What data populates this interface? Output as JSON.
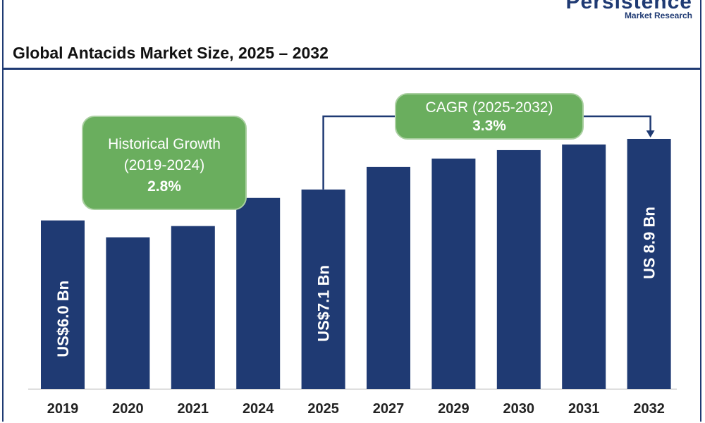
{
  "header": {
    "logo_word": "Persistence",
    "logo_sub": "Market Research",
    "title": "Global Antacids Market Size, 2025 – 2032"
  },
  "callouts": {
    "historical": {
      "line1": "Historical Growth",
      "line2": "(2019-2024)",
      "value": "2.8%"
    },
    "cagr": {
      "line1": "CAGR (2025-2032)",
      "value": "3.3%"
    }
  },
  "colors": {
    "bar": "#1f3a73",
    "accent_green": "#6aae5e",
    "rule": "#1f3a73"
  },
  "chart_data": {
    "type": "bar",
    "title": "Global Antacids Market Size, 2025 – 2032",
    "xlabel": "",
    "ylabel": "",
    "categories": [
      "2019",
      "2020",
      "2021",
      "2024",
      "2025",
      "2027",
      "2029",
      "2030",
      "2031",
      "2032"
    ],
    "values": [
      6.0,
      5.4,
      5.8,
      6.8,
      7.1,
      7.9,
      8.2,
      8.5,
      8.7,
      8.9
    ],
    "unit": "US$ Bn",
    "ylim": [
      0,
      9.0
    ],
    "grid": false,
    "data_labels": [
      {
        "category": "2019",
        "text": "US$6.0 Bn"
      },
      {
        "category": "2025",
        "text": "US$7.1 Bn"
      },
      {
        "category": "2032",
        "text": "US 8.9 Bn"
      }
    ]
  }
}
